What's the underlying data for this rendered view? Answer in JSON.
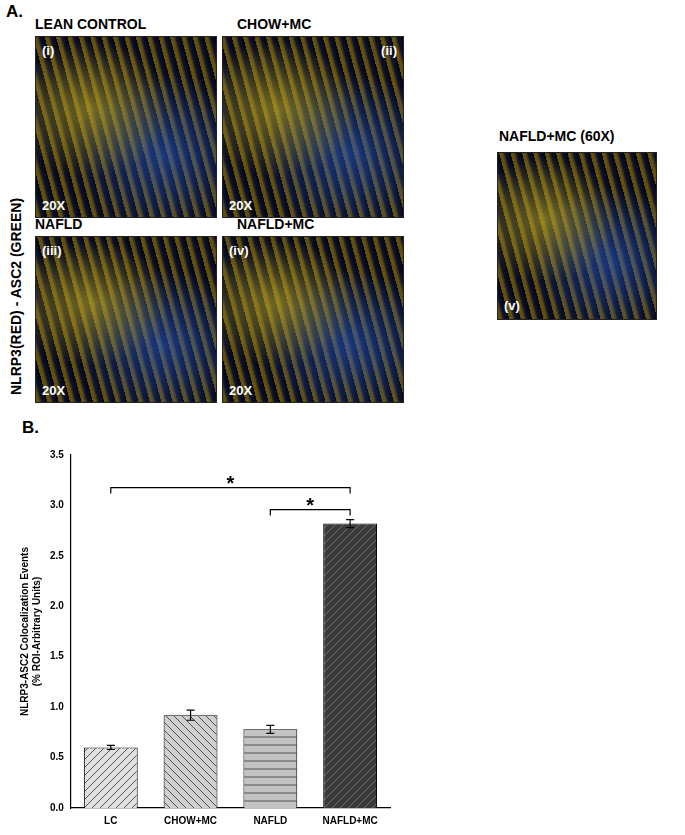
{
  "panel_a": {
    "label": "A.",
    "side_label": "NLRP3(RED) - ASC2 (GREEN)",
    "panels": [
      {
        "title": "LEAN CONTROL",
        "tag": "(i)",
        "magnification": "20X"
      },
      {
        "title": "CHOW+MC",
        "tag": "(ii)",
        "magnification": "20X"
      },
      {
        "title": "NAFLD",
        "tag": "(iii)",
        "magnification": "20X"
      },
      {
        "title": "NAFLD+MC",
        "tag": "(iv)",
        "magnification": "20X"
      },
      {
        "title": "NAFLD+MC (60X)",
        "tag": "(v)"
      }
    ]
  },
  "chart_data": {
    "type": "bar",
    "label": "B.",
    "y_label": [
      "NLRP3-ASC2 Colocalization Events",
      "(% ROI-Arbitrary Units)"
    ],
    "categories": [
      "LC",
      "CHOW+MC",
      "NAFLD",
      "NAFLD+MC"
    ],
    "values": [
      0.6,
      0.92,
      0.78,
      2.82
    ],
    "errors": [
      0.02,
      0.05,
      0.04,
      0.04
    ],
    "colors": [
      "#e0e0e0",
      "#d0d0d0",
      "#c4c4c4",
      "#3a3a3a"
    ],
    "ylim": [
      0,
      3.5
    ],
    "yticks": [
      {
        "value": 0,
        "label": "0.0"
      },
      0.5,
      {
        "value": 1,
        "label": "1.0"
      },
      1.5,
      {
        "value": 2,
        "label": "2.0"
      },
      2.5,
      {
        "value": 3,
        "label": "3.0"
      },
      3.5
    ],
    "grid": false,
    "annotations": [
      {
        "from": "LC",
        "to": "NAFLD+MC",
        "label": "*"
      },
      {
        "from": "NAFLD",
        "to": "NAFLD+MC",
        "label": "*"
      }
    ]
  }
}
